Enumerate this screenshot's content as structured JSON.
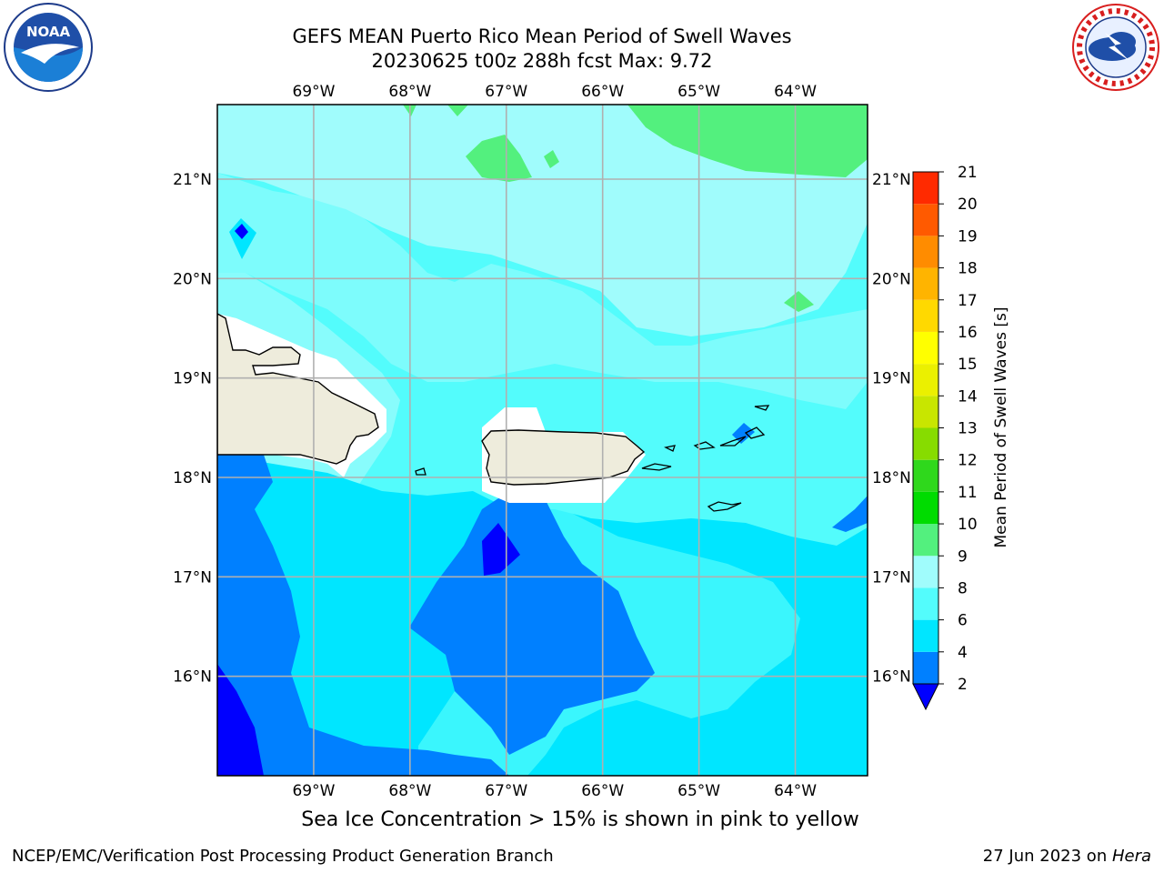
{
  "title": {
    "line1": "GEFS MEAN Puerto Rico Mean Period of Swell Waves",
    "line2": "20230625 t00z 288h fcst   Max: 9.72"
  },
  "logos": {
    "left": {
      "name": "noaa-logo",
      "text": "NOAA",
      "ring_text": "NATIONAL OCEANIC AND ATMOSPHERIC ADMINISTRATION · U.S. DEPARTMENT OF COMMERCE"
    },
    "right": {
      "name": "nws-logo",
      "ring_text": "NATIONAL WEATHER SERVICE"
    }
  },
  "map": {
    "lon_labels": [
      "69°W",
      "68°W",
      "67°W",
      "66°W",
      "65°W",
      "64°W"
    ],
    "lat_labels": [
      "21°N",
      "20°N",
      "19°N",
      "18°N",
      "17°N",
      "16°N"
    ],
    "lon_values": [
      -69,
      -68,
      -67,
      -66,
      -65,
      -64
    ],
    "lat_values": [
      21,
      20,
      19,
      18,
      17,
      16
    ],
    "extent": {
      "lon": [
        -70,
        -63.25
      ],
      "lat": [
        15,
        21.75
      ]
    },
    "land_color": "#eeecdc",
    "grid_color": "#b0b0b0"
  },
  "colorbar": {
    "label": "Mean Period of Swell Waves [s]",
    "levels": [
      2,
      4,
      6,
      8,
      9,
      10,
      11,
      12,
      13,
      14,
      15,
      16,
      17,
      18,
      19,
      20,
      21
    ],
    "level_labels": [
      "2",
      "4",
      "6",
      "8",
      "9",
      "10",
      "11",
      "12",
      "13",
      "14",
      "15",
      "16",
      "17",
      "18",
      "19",
      "20",
      "21"
    ],
    "colors": [
      "#0080ff",
      "#00e6ff",
      "#53fcfc",
      "#a0fcfc",
      "#53f07e",
      "#00dc00",
      "#2fd81c",
      "#87dc00",
      "#c8e600",
      "#ebf000",
      "#ffff00",
      "#ffd900",
      "#ffb400",
      "#ff8c00",
      "#ff5a00",
      "#ff2a00",
      "#ff0000"
    ],
    "under_color": "#0000ff",
    "extend": "min"
  },
  "caption": "Sea Ice Concentration > 15% is shown in pink to yellow",
  "footer": {
    "left": "NCEP/EMC/Verification Post Processing Product Generation Branch",
    "right_date": "27 Jun 2023 on ",
    "right_host": "Hera"
  }
}
